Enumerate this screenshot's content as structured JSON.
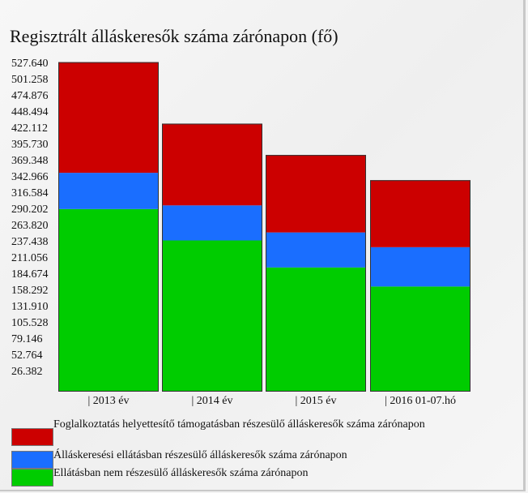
{
  "title": "Regisztrált álláskeresők száma zárónapon (fő)",
  "colors": {
    "red": "#cc0000",
    "blue": "#1a6eff",
    "green": "#00cc00"
  },
  "chart_data": {
    "type": "bar",
    "stacked": true,
    "title": "Regisztrált álláskeresők száma zárónapon (fő)",
    "categories": [
      "| 2013 év",
      "| 2014 év",
      "| 2015 év",
      "| 2016 01-07.hó"
    ],
    "series": [
      {
        "name": "Ellátásban nem részesülő álláskeresők száma zárónapon",
        "color": "#00cc00",
        "values": [
          297000,
          246000,
          202000,
          171000
        ]
      },
      {
        "name": "Álláskeresési ellátásban részesülő álláskeresők száma zárónapon",
        "color": "#1a6eff",
        "values": [
          59000,
          57000,
          57000,
          64000
        ]
      },
      {
        "name": "Foglalkoztatás helyettesítő támogatásban részesülő álláskeresők száma zárónapon",
        "color": "#cc0000",
        "values": [
          180000,
          133000,
          126000,
          109000
        ]
      }
    ],
    "yticks": [
      "26.382",
      "52.764",
      "79.146",
      "105.528",
      "131.910",
      "158.292",
      "184.674",
      "211.056",
      "237.438",
      "263.820",
      "290.202",
      "316.584",
      "342.966",
      "369.348",
      "395.730",
      "422.112",
      "448.494",
      "474.876",
      "501.258",
      "527.640"
    ],
    "ylim": [
      0,
      540000
    ],
    "legend_position": "bottom-left",
    "grid": false
  }
}
